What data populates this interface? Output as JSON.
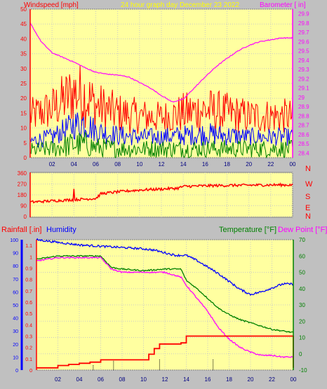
{
  "header": {
    "windspeed_label": "Windspeed [mph]",
    "title": "24 hour graph day   December 23 2022",
    "barometer_label": "Barometer [ in]"
  },
  "colors": {
    "background": "#c0c0c0",
    "plot_bg": "#ffffa0",
    "wind": "#ff0000",
    "gust_mid": "#0000ff",
    "gust_low": "#008000",
    "barometer": "#ff00ff",
    "humidity": "#0000ff",
    "temperature": "#008000",
    "dewpoint": "#ff00ff",
    "rain": "#ff0000",
    "title_color": "#ffff00"
  },
  "chart_data": [
    {
      "type": "line",
      "name": "wind-barometer",
      "x_ticks": [
        "02",
        "04",
        "06",
        "08",
        "10",
        "12",
        "14",
        "16",
        "18",
        "20",
        "22",
        "00"
      ],
      "y_left_ticks": [
        0,
        5,
        10,
        15,
        20,
        25,
        30,
        35,
        40,
        45,
        50
      ],
      "y_left_range": [
        0,
        50
      ],
      "y_right_ticks": [
        "28.4",
        "28.5",
        "28.6",
        "28.7",
        "28.8",
        "28.9",
        "29",
        "29.1",
        "29.2",
        "29.3",
        "29.4",
        "29.5",
        "29.6",
        "29.7",
        "29.8",
        "29.9"
      ],
      "y_right_range": [
        28.35,
        29.95
      ],
      "series": [
        {
          "color": "#ff0000",
          "band_hour": [
            0,
            2,
            4,
            5,
            6,
            8,
            10,
            12,
            14,
            16,
            18,
            20,
            22,
            24
          ],
          "band_high": [
            20,
            24,
            33,
            32,
            26,
            22,
            20,
            19,
            22,
            24,
            22,
            20,
            20,
            20
          ],
          "band_low": [
            8,
            9,
            11,
            10,
            9,
            8,
            8,
            8,
            8,
            8,
            8,
            8,
            8,
            8
          ]
        },
        {
          "color": "#0000ff",
          "band_hour": [
            0,
            2,
            4,
            5,
            6,
            8,
            10,
            12,
            14,
            16,
            18,
            20,
            22,
            24
          ],
          "band_high": [
            8,
            10,
            16,
            18,
            13,
            11,
            10,
            10,
            11,
            12,
            11,
            10,
            10,
            10
          ],
          "band_low": [
            3,
            4,
            6,
            6,
            5,
            4,
            4,
            4,
            4,
            4,
            4,
            4,
            4,
            4
          ]
        },
        {
          "color": "#008000",
          "band_hour": [
            0,
            2,
            4,
            5,
            6,
            8,
            10,
            12,
            14,
            16,
            18,
            20,
            22,
            24
          ],
          "band_high": [
            5,
            6,
            9,
            9,
            7,
            6,
            6,
            6,
            6,
            6,
            6,
            6,
            6,
            6
          ],
          "band_low": [
            0,
            0,
            0,
            0,
            0,
            0,
            0,
            0,
            0,
            0,
            0,
            0,
            0,
            0
          ]
        },
        {
          "color": "#ff00ff",
          "x": [
            0,
            1,
            2,
            3,
            4,
            5,
            6,
            7,
            8,
            9,
            10,
            11,
            12,
            13,
            14,
            15,
            16,
            17,
            18,
            19,
            20,
            21,
            22,
            23,
            24
          ],
          "y": [
            29.8,
            29.6,
            29.48,
            29.43,
            29.38,
            29.32,
            29.27,
            29.25,
            29.24,
            29.22,
            29.16,
            29.1,
            29.02,
            28.95,
            28.98,
            29.1,
            29.22,
            29.33,
            29.42,
            29.5,
            29.56,
            29.6,
            29.62,
            29.64,
            29.64
          ]
        }
      ]
    },
    {
      "type": "line",
      "name": "wind-direction",
      "x_ticks": [
        "02",
        "04",
        "06",
        "08",
        "10",
        "12",
        "14",
        "16",
        "18",
        "20",
        "22",
        "00"
      ],
      "y_ticks": [
        0,
        90,
        180,
        270,
        360
      ],
      "y_range": [
        0,
        360
      ],
      "right_labels": [
        "N",
        "W",
        "S",
        "E",
        "N"
      ],
      "series": [
        {
          "color": "#ff0000",
          "x": [
            0,
            2,
            4,
            6,
            6.5,
            8,
            10,
            12,
            13.5,
            14,
            16,
            18,
            20,
            22,
            24
          ],
          "y": [
            120,
            130,
            140,
            150,
            190,
            205,
            220,
            228,
            235,
            250,
            255,
            258,
            260,
            262,
            262
          ]
        }
      ]
    },
    {
      "type": "line",
      "name": "rain-humidity-temp-dew",
      "left_label_rain": "Rainfall [.in]",
      "left_label_humidity": "Humidity",
      "right_label_temp": "Temperature [°F]",
      "right_label_dew": "Dew Point [°F]",
      "x_ticks": [
        "02",
        "04",
        "06",
        "08",
        "10",
        "12",
        "14",
        "16",
        "18",
        "20",
        "22",
        "00"
      ],
      "y_humidity_ticks": [
        0,
        10,
        20,
        30,
        40,
        50,
        60,
        70,
        80,
        90,
        100
      ],
      "y_rain_ticks": [
        "0",
        "0.1",
        "0.2",
        "0.3",
        "0.4",
        "0.5",
        "0.6",
        "0.7",
        "0.8",
        "0.9",
        "1",
        "1.1"
      ],
      "y_temp_ticks": [
        -10,
        0,
        10,
        20,
        30,
        40,
        50,
        60,
        70
      ],
      "y_temp_range": [
        -10,
        70
      ],
      "y_rain_range": [
        0,
        1.15
      ],
      "series": [
        {
          "name": "Humidity",
          "color": "#0000ff",
          "x": [
            0,
            2,
            4,
            6,
            8,
            10,
            11,
            12,
            13,
            14,
            15,
            16,
            17,
            18,
            19,
            20,
            21,
            22,
            23,
            24
          ],
          "y": [
            100,
            98,
            96,
            95,
            94,
            93,
            92,
            90,
            88,
            88,
            84,
            79,
            74,
            68,
            62,
            58,
            60,
            63,
            66,
            66
          ]
        },
        {
          "name": "Temperature",
          "color": "#008000",
          "x": [
            0,
            2,
            4,
            6,
            7,
            8,
            10,
            12,
            13.5,
            14,
            15,
            16,
            17,
            18,
            19,
            20,
            21,
            22,
            23,
            24
          ],
          "y": [
            58,
            60,
            60,
            60,
            53,
            52,
            51,
            52,
            52,
            45,
            40,
            34,
            28,
            24,
            21,
            19,
            17,
            15,
            14,
            13
          ]
        },
        {
          "name": "Dew Point",
          "color": "#ff00ff",
          "x": [
            0,
            2,
            4,
            6,
            7,
            8,
            10,
            12,
            13.5,
            14,
            15,
            16,
            17,
            18,
            19,
            20,
            21,
            22,
            23,
            24
          ],
          "y": [
            57,
            59,
            59,
            59,
            52,
            50,
            50,
            50,
            47,
            42,
            34,
            26,
            16,
            9,
            4,
            1,
            -1,
            -1,
            -2,
            -2
          ]
        },
        {
          "name": "Rainfall",
          "color": "#ff0000",
          "x": [
            0,
            2,
            3,
            4,
            5,
            6,
            7,
            10,
            10.5,
            11,
            11.5,
            13.5,
            14,
            16,
            20,
            22,
            23.9,
            24
          ],
          "y": [
            0.02,
            0.04,
            0.05,
            0.06,
            0.07,
            0.09,
            0.09,
            0.09,
            0.14,
            0.19,
            0.23,
            0.24,
            0.3,
            0.3,
            0.3,
            0.3,
            0.3,
            0.02
          ]
        }
      ],
      "rain_markers_hour": [
        5.3,
        7.2,
        11.5,
        16.5
      ]
    }
  ]
}
